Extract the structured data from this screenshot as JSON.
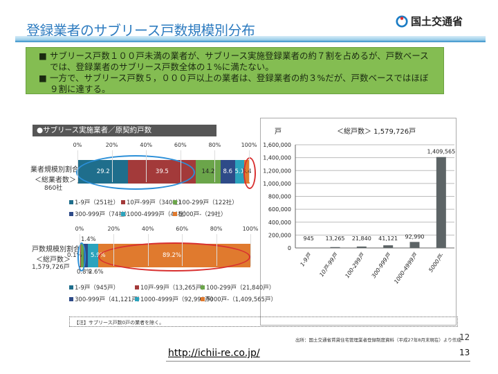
{
  "header": {
    "title": "登録業者のサブリース戸数規模別分布",
    "logo_text": "国土交通省"
  },
  "summary": {
    "bullet": "■",
    "items": [
      "サブリース戸数１００戸未満の業者が、サブリース実施登録業者の約７割を占めるが、戸数ベースでは、登録業者のサブリース戸数全体の１%に満たない。",
      "一方で、サブリース戸数５，０００戸以上の業者は、登録業者の約３%だが、戸数ベースではほぼ９割に達する。"
    ]
  },
  "colors": {
    "c1": "#1f6e8c",
    "c2": "#a33a3a",
    "c3": "#6ba54a",
    "c4": "#2e4b88",
    "c5": "#2aa3bd",
    "c6": "#e07a2e",
    "col": "#5d6466"
  },
  "chart_data": [
    {
      "type": "bar",
      "orientation": "horizontal-stacked-100",
      "header": "●サブリース実施業者／原契約戸数",
      "category_label": "業者規模別割合",
      "sub_label": "＜総業者数＞",
      "total_label": "860社",
      "ticks": [
        "0%",
        "20%",
        "40%",
        "60%",
        "80%",
        "100%"
      ],
      "series": [
        {
          "name": "1-9戸（251社）",
          "value": 29.2,
          "label": "29.2"
        },
        {
          "name": "10戸-99戸（340社）",
          "value": 39.5,
          "label": "39.5"
        },
        {
          "name": "100-299戸（122社）",
          "value": 14.2,
          "label": "14.2"
        },
        {
          "name": "300-999戸（74社）",
          "value": 8.6,
          "label": "8.6"
        },
        {
          "name": "1000-4999戸（44社）",
          "value": 5.1,
          "label": "5.1"
        },
        {
          "name": "5000戸-（29社）",
          "value": 3.4,
          "label": "3.4"
        }
      ]
    },
    {
      "type": "bar",
      "orientation": "horizontal-stacked-100",
      "category_label": "戸数規模別割合",
      "sub_label": "＜総戸数＞",
      "total_label": "1,579,726戸",
      "ticks": [
        "0%",
        "20%",
        "40%",
        "60%",
        "80%",
        "100%"
      ],
      "series": [
        {
          "name": "1-9戸（945戸）",
          "value": 0.1,
          "label": "0.1%"
        },
        {
          "name": "10戸-99戸（13,265戸）",
          "value": 0.8,
          "label": "0.8%"
        },
        {
          "name": "100-299戸（21,840戸）",
          "value": 1.4,
          "label": "1.4%"
        },
        {
          "name": "300-999戸（41,121戸）",
          "value": 2.6,
          "label": "2.6%"
        },
        {
          "name": "1000-4999戸（92,990戸）",
          "value": 5.9,
          "label": "5.9%"
        },
        {
          "name": "5000戸-（1,409,565戸）",
          "value": 89.2,
          "label": "89.2%"
        }
      ]
    },
    {
      "type": "bar",
      "title": "＜総戸数＞ 1,579,726戸",
      "ylabel": "戸",
      "ylim": [
        0,
        1600000
      ],
      "yticks": [
        "0",
        "200,000",
        "400,000",
        "600,000",
        "800,000",
        "1,000,000",
        "1,200,000",
        "1,400,000",
        "1,600,000"
      ],
      "categories": [
        "1-9戸",
        "10戸-99戸",
        "100-299戸",
        "300-999戸",
        "1000-4999戸",
        "5000戸-"
      ],
      "values": [
        945,
        13265,
        21840,
        41121,
        92990,
        1409565
      ],
      "labels": [
        "945",
        "13,265",
        "21,840",
        "41,121",
        "92,990",
        "1,409,565"
      ]
    }
  ],
  "note": "【注】サブリース戸数0戸の業者を除く。",
  "footer": {
    "source": "出所：国土交通省賃貸住宅管理業者登録制度資料（平成27年8月末現在）より作成",
    "page_inner": "12",
    "page": "13",
    "url": "http://ichii-re.co.jp/"
  }
}
